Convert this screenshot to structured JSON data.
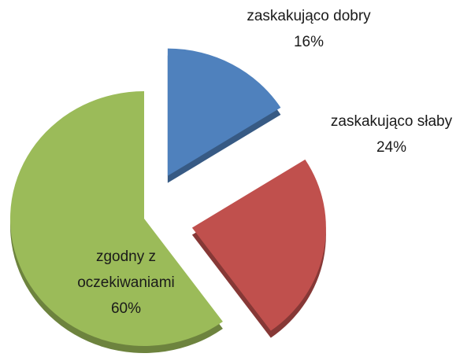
{
  "chart_data": {
    "type": "pie",
    "categories": [
      "zaskakująco dobry",
      "zaskakująco słaby",
      "zgodny z oczekiwaniami"
    ],
    "values": [
      16,
      24,
      60
    ],
    "value_labels": [
      "16%",
      "24%",
      "60%"
    ],
    "colors": [
      "#4f81bd",
      "#c0504d",
      "#9bbb59"
    ],
    "explode": [
      true,
      true,
      false
    ]
  }
}
